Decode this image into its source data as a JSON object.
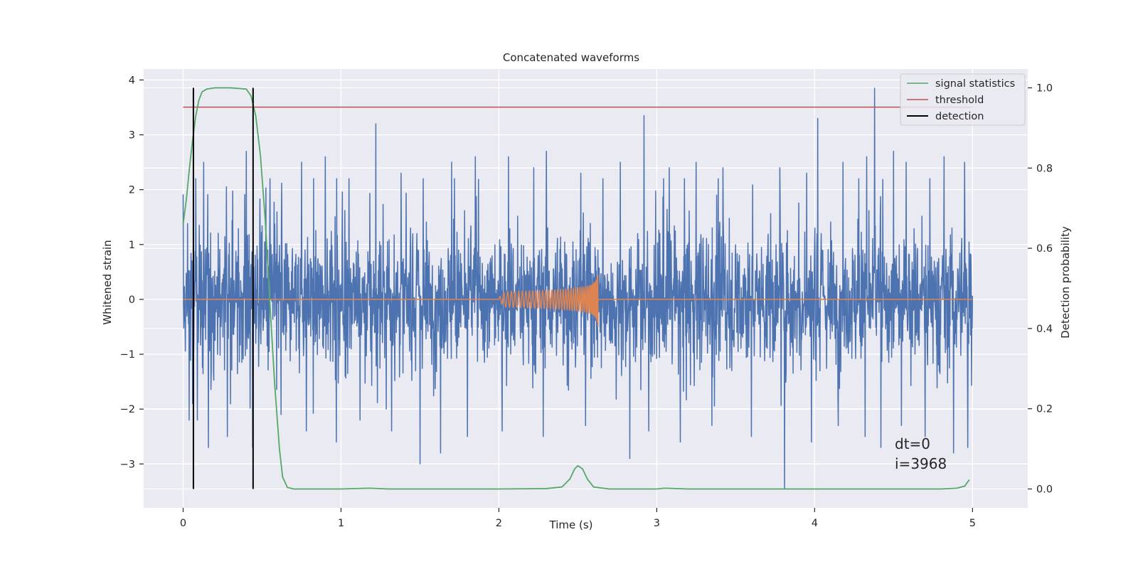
{
  "chart_data": {
    "type": "line",
    "title": "Concatenated waveforms",
    "xlabel": "Time (s)",
    "ylabel": "Whitened strain",
    "y2label": "Detection probability",
    "xlim": [
      -0.25,
      5.35
    ],
    "ylim": [
      -3.8,
      4.2
    ],
    "y2lim": [
      -0.047,
      1.047
    ],
    "xticks": [
      0,
      1,
      2,
      3,
      4,
      5
    ],
    "yticks": [
      -3,
      -2,
      -1,
      0,
      1,
      2,
      3,
      4
    ],
    "y2ticks": [
      0.0,
      0.2,
      0.4,
      0.6,
      0.8,
      1.0
    ],
    "xtick_labels": [
      "0",
      "1",
      "2",
      "3",
      "4",
      "5"
    ],
    "ytick_labels": [
      "−3",
      "−2",
      "−1",
      "0",
      "1",
      "2",
      "3",
      "4"
    ],
    "y2tick_labels": [
      "0.0",
      "0.2",
      "0.4",
      "0.6",
      "0.8",
      "1.0"
    ],
    "grid": true,
    "legend_position": "top-right",
    "legend": [
      "signal statistics",
      "threshold",
      "detection"
    ],
    "annotation_lines": [
      "dt=0",
      "i=3968"
    ],
    "colors": {
      "background": "#eaeaf2",
      "grid": "#ffffff",
      "strain": "#4c72b0",
      "waveform": "#dd8452",
      "signal_statistics": "#55a868",
      "threshold": "#c44e52",
      "detection": "#000000"
    },
    "series": [
      {
        "name": "strain",
        "axis": "left",
        "style": "noise",
        "x_range": [
          0,
          5
        ],
        "y_range": [
          -3.5,
          3.85
        ],
        "peaks": [
          [
            0.13,
            2.5
          ],
          [
            0.28,
            2.5
          ],
          [
            0.4,
            2.7
          ],
          [
            0.55,
            2.2
          ],
          [
            0.75,
            2.5
          ],
          [
            0.9,
            2.6
          ],
          [
            1.05,
            2.2
          ],
          [
            1.22,
            3.2
          ],
          [
            1.38,
            2.3
          ],
          [
            1.52,
            2.2
          ],
          [
            1.7,
            2.5
          ],
          [
            1.85,
            2.6
          ],
          [
            2.06,
            2.6
          ],
          [
            2.22,
            2.4
          ],
          [
            2.3,
            2.7
          ],
          [
            2.52,
            2.3
          ],
          [
            2.66,
            2.2
          ],
          [
            2.77,
            2.5
          ],
          [
            2.92,
            3.35
          ],
          [
            3.08,
            2.4
          ],
          [
            3.25,
            2.5
          ],
          [
            3.42,
            2.4
          ],
          [
            3.6,
            2.5
          ],
          [
            3.78,
            2.4
          ],
          [
            3.95,
            2.3
          ],
          [
            4.02,
            3.3
          ],
          [
            4.18,
            2.5
          ],
          [
            4.33,
            2.6
          ],
          [
            4.38,
            3.85
          ],
          [
            4.5,
            2.7
          ],
          [
            4.58,
            2.5
          ],
          [
            4.73,
            2.2
          ],
          [
            4.82,
            2.6
          ],
          [
            4.95,
            2.5
          ]
        ],
        "troughs": [
          [
            0.06,
            -1.9
          ],
          [
            0.16,
            -2.7
          ],
          [
            0.28,
            -2.5
          ],
          [
            0.44,
            -2.7
          ],
          [
            0.62,
            -2.1
          ],
          [
            0.78,
            -2.4
          ],
          [
            0.97,
            -2.6
          ],
          [
            1.12,
            -2.2
          ],
          [
            1.32,
            -2.4
          ],
          [
            1.5,
            -3.0
          ],
          [
            1.63,
            -2.8
          ],
          [
            1.8,
            -2.5
          ],
          [
            2.02,
            -2.4
          ],
          [
            2.28,
            -2.5
          ],
          [
            2.55,
            -2.3
          ],
          [
            2.83,
            -2.9
          ],
          [
            2.95,
            -2.4
          ],
          [
            3.15,
            -2.6
          ],
          [
            3.35,
            -2.3
          ],
          [
            3.6,
            -2.5
          ],
          [
            3.81,
            -3.45
          ],
          [
            3.98,
            -2.6
          ],
          [
            4.15,
            -2.3
          ],
          [
            4.32,
            -2.5
          ],
          [
            4.42,
            -2.7
          ],
          [
            4.55,
            -2.3
          ],
          [
            4.7,
            -2.5
          ],
          [
            4.88,
            -2.8
          ],
          [
            4.97,
            -2.7
          ]
        ]
      },
      {
        "name": "waveform",
        "axis": "left",
        "style": "chirp",
        "flat_value": 0,
        "chirp_start": 2.0,
        "chirp_end": 2.628,
        "peak_amplitude": 0.5,
        "x_range": [
          0,
          5
        ]
      },
      {
        "name": "signal statistics",
        "axis": "right",
        "points": [
          [
            0.0,
            0.66
          ],
          [
            0.02,
            0.72
          ],
          [
            0.04,
            0.8
          ],
          [
            0.06,
            0.87
          ],
          [
            0.08,
            0.93
          ],
          [
            0.1,
            0.97
          ],
          [
            0.12,
            0.99
          ],
          [
            0.15,
            0.997
          ],
          [
            0.2,
            1.0
          ],
          [
            0.3,
            1.0
          ],
          [
            0.4,
            0.997
          ],
          [
            0.43,
            0.98
          ],
          [
            0.46,
            0.93
          ],
          [
            0.49,
            0.83
          ],
          [
            0.52,
            0.67
          ],
          [
            0.55,
            0.46
          ],
          [
            0.58,
            0.26
          ],
          [
            0.61,
            0.1
          ],
          [
            0.63,
            0.03
          ],
          [
            0.66,
            0.004
          ],
          [
            0.7,
            0.0
          ],
          [
            1.0,
            0.0
          ],
          [
            1.18,
            0.002
          ],
          [
            1.3,
            0.0
          ],
          [
            2.0,
            0.0
          ],
          [
            2.3,
            0.001
          ],
          [
            2.4,
            0.005
          ],
          [
            2.45,
            0.025
          ],
          [
            2.48,
            0.05
          ],
          [
            2.5,
            0.058
          ],
          [
            2.53,
            0.05
          ],
          [
            2.56,
            0.025
          ],
          [
            2.6,
            0.005
          ],
          [
            2.7,
            0.0
          ],
          [
            3.0,
            0.0
          ],
          [
            3.05,
            0.002
          ],
          [
            3.2,
            0.0
          ],
          [
            4.8,
            0.0
          ],
          [
            4.9,
            0.002
          ],
          [
            4.95,
            0.007
          ],
          [
            4.98,
            0.023
          ]
        ]
      },
      {
        "name": "threshold",
        "axis": "right",
        "y": 0.952,
        "x_range": [
          0,
          5
        ]
      },
      {
        "name": "detection",
        "axis": "right",
        "x": [
          0.065,
          0.443
        ],
        "y_range": [
          0.0,
          1.0
        ]
      }
    ]
  }
}
